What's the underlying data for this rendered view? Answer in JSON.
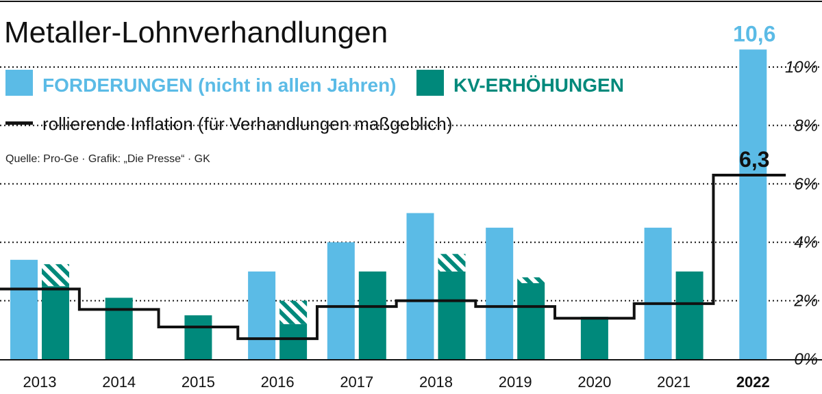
{
  "chart_data": {
    "type": "bar",
    "title": "Metaller-Lohnverhandlungen",
    "source": "Quelle: Pro-Ge · Grafik: „Die Presse“ · GK",
    "categories": [
      "2013",
      "2014",
      "2015",
      "2016",
      "2017",
      "2018",
      "2019",
      "2020",
      "2021",
      "2022"
    ],
    "highlight_category": "2022",
    "ylim": [
      0,
      10
    ],
    "y_ticks": [
      {
        "value": 0,
        "label": "0%"
      },
      {
        "value": 2,
        "label": "2%"
      },
      {
        "value": 4,
        "label": "4%"
      },
      {
        "value": 6,
        "label": "6%"
      },
      {
        "value": 8,
        "label": "8%"
      },
      {
        "value": 10,
        "label": "10%"
      }
    ],
    "grid": "dotted horizontal",
    "legend": [
      {
        "key": "forderungen",
        "label": "FORDERUNGEN (nicht in allen Jahren)",
        "color": "#5bbbe6"
      },
      {
        "key": "kv",
        "label": "KV-ERHÖHUNGEN",
        "color": "#00897b"
      },
      {
        "key": "inflation",
        "label": "rollierende Inflation (für Verhandlungen maßgeblich)",
        "color": "#111111"
      }
    ],
    "series": [
      {
        "name": "FORDERUNGEN (nicht in allen Jahren)",
        "color": "#5bbbe6",
        "values": [
          3.4,
          null,
          null,
          3.0,
          4.0,
          5.0,
          4.5,
          null,
          4.5,
          10.6
        ]
      },
      {
        "name": "KV-ERHÖHUNGEN",
        "color": "#00897b",
        "values": [
          2.5,
          2.1,
          1.5,
          1.2,
          3.0,
          3.0,
          2.6,
          1.45,
          3.0,
          null
        ],
        "hatched_top": [
          0.75,
          null,
          null,
          0.8,
          null,
          0.6,
          0.2,
          null,
          null,
          null
        ]
      },
      {
        "name": "rollierende Inflation (für Verhandlungen maßgeblich)",
        "color": "#111111",
        "type": "step",
        "values": [
          2.4,
          1.7,
          1.1,
          0.7,
          1.8,
          2.0,
          1.8,
          1.4,
          1.9,
          6.3
        ]
      }
    ],
    "annotations": [
      {
        "category": "2022",
        "series": "forderungen",
        "text": "10,6"
      },
      {
        "category": "2022",
        "series": "inflation",
        "text": "6,3"
      }
    ]
  }
}
